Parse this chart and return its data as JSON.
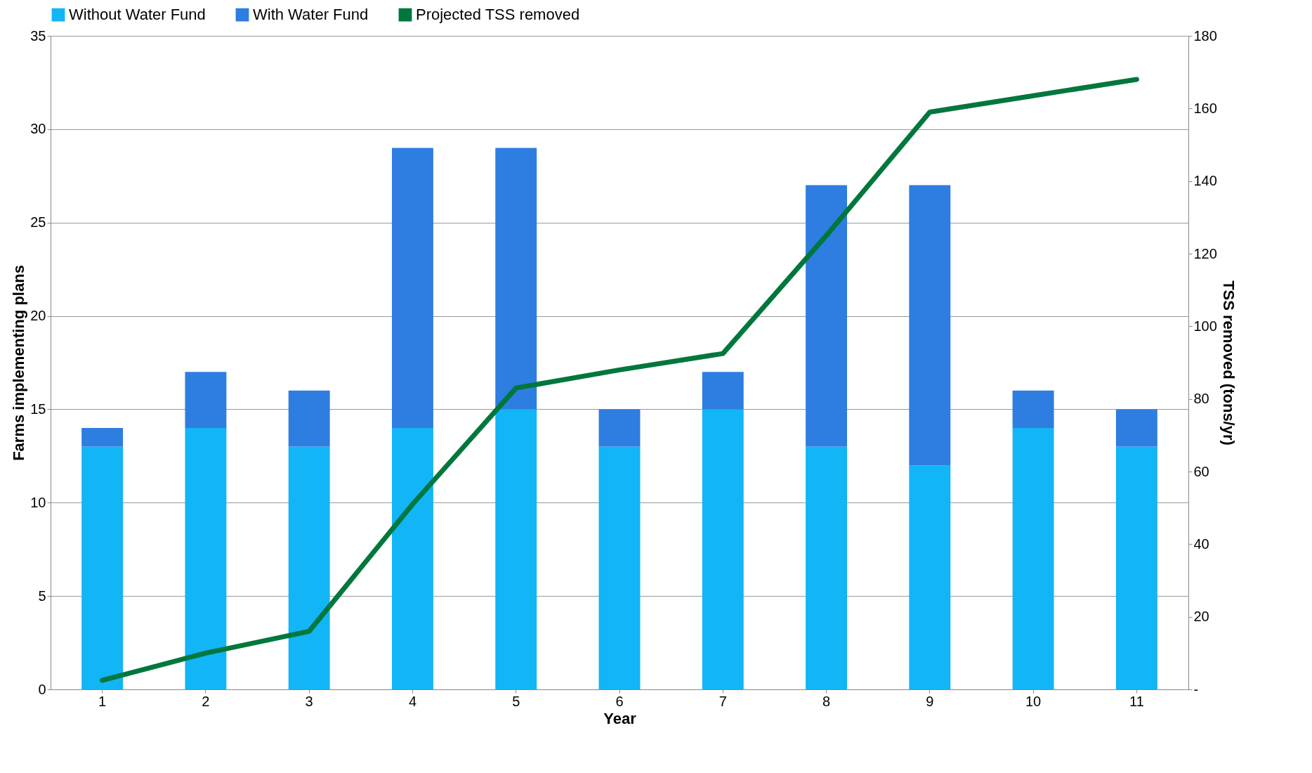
{
  "chart_data": {
    "type": "bar",
    "stacked": true,
    "xlabel": "Year",
    "ylabel": "Farms implementing plans",
    "y2label": "TSS removed (tons/yr)",
    "categories": [
      "1",
      "2",
      "3",
      "4",
      "5",
      "6",
      "7",
      "8",
      "9",
      "10",
      "11"
    ],
    "series": [
      {
        "name": "Without Water Fund",
        "color": "#12b5f5",
        "values": [
          13,
          14,
          13,
          14,
          15,
          13,
          15,
          13,
          12,
          14,
          13
        ]
      },
      {
        "name": "With Water Fund",
        "color": "#2e7de0",
        "values": [
          1,
          3,
          3,
          15,
          14,
          2,
          2,
          14,
          15,
          2,
          2
        ]
      },
      {
        "name": "Projected TSS removed",
        "type": "line",
        "axis": "y2",
        "color": "#00773c",
        "values": [
          2.5,
          10,
          16,
          51,
          83,
          88,
          92.5,
          125,
          159,
          163.5,
          168
        ]
      }
    ],
    "ylim": [
      0,
      35
    ],
    "yticks": [
      0,
      5,
      10,
      15,
      20,
      25,
      30,
      35
    ],
    "y2lim": [
      0,
      180
    ],
    "y2ticks": [
      {
        "value": 0,
        "label": "-"
      },
      20,
      40,
      60,
      80,
      100,
      120,
      140,
      160,
      180
    ],
    "grid": "y",
    "legend": "top"
  }
}
